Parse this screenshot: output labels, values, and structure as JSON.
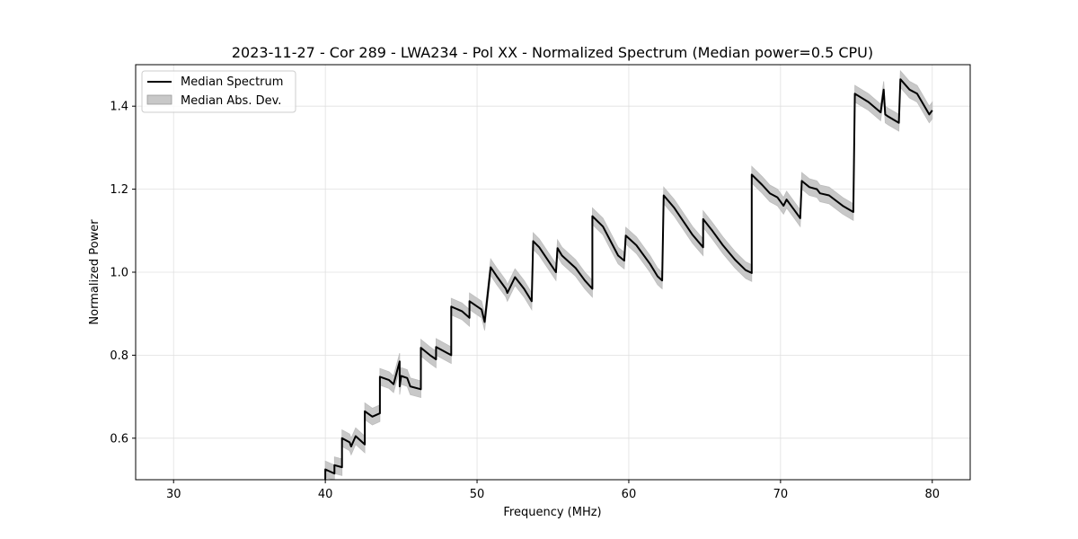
{
  "chart_data": {
    "type": "line",
    "title": "2023-11-27 - Cor 289 - LWA234 - Pol XX - Normalized Spectrum (Median power=0.5 CPU)",
    "xlabel": "Frequency (MHz)",
    "ylabel": "Normalized Power",
    "xlim": [
      27.5,
      82.5
    ],
    "ylim": [
      0.5,
      1.5
    ],
    "xticks": [
      30,
      40,
      50,
      60,
      70,
      80
    ],
    "yticks": [
      0.6,
      0.8,
      1.0,
      1.2,
      1.4
    ],
    "xtick_labels": [
      "30",
      "40",
      "50",
      "60",
      "70",
      "80"
    ],
    "ytick_labels": [
      "0.6",
      "0.8",
      "1.0",
      "1.2",
      "1.4"
    ],
    "grid": true,
    "legend_position": "top-left",
    "legend": [
      "Median Spectrum",
      "Median Abs. Dev."
    ],
    "series": [
      {
        "name": "Median Spectrum",
        "color": "#000000",
        "x": [
          40.0,
          40.0,
          40.6,
          40.6,
          41.1,
          41.1,
          41.6,
          41.7,
          42.0,
          42.6,
          42.6,
          43.1,
          43.6,
          43.6,
          44.2,
          44.5,
          44.9,
          44.9,
          45.0,
          45.4,
          45.6,
          46.3,
          46.3,
          46.9,
          47.3,
          47.3,
          48.3,
          48.3,
          49.0,
          49.5,
          49.5,
          50.3,
          50.5,
          50.9,
          51.3,
          51.6,
          51.9,
          52.0,
          52.5,
          53.1,
          53.6,
          53.7,
          54.1,
          55.2,
          55.3,
          55.6,
          56.5,
          57.1,
          57.6,
          57.6,
          58.3,
          59.3,
          59.7,
          59.8,
          60.5,
          61.4,
          61.9,
          62.2,
          62.3,
          63.0,
          64.2,
          64.9,
          64.9,
          65.5,
          66.2,
          67.0,
          67.7,
          68.1,
          68.1,
          68.8,
          69.3,
          69.8,
          70.2,
          70.4,
          70.9,
          71.3,
          71.4,
          71.9,
          72.4,
          72.6,
          73.2,
          74.1,
          74.8,
          74.9,
          75.8,
          76.6,
          76.8,
          76.9,
          77.1,
          77.8,
          77.9,
          78.5,
          79.0,
          79.8,
          80.0
        ],
        "y": [
          0.5,
          0.525,
          0.515,
          0.535,
          0.53,
          0.6,
          0.59,
          0.58,
          0.605,
          0.585,
          0.665,
          0.652,
          0.66,
          0.748,
          0.74,
          0.73,
          0.785,
          0.725,
          0.75,
          0.745,
          0.725,
          0.718,
          0.818,
          0.8,
          0.79,
          0.82,
          0.8,
          0.917,
          0.906,
          0.89,
          0.93,
          0.91,
          0.88,
          1.012,
          0.99,
          0.975,
          0.96,
          0.95,
          0.988,
          0.96,
          0.93,
          1.075,
          1.06,
          1.0,
          1.058,
          1.04,
          1.01,
          0.98,
          0.96,
          1.135,
          1.11,
          1.04,
          1.028,
          1.088,
          1.065,
          1.02,
          0.99,
          0.98,
          1.185,
          1.155,
          1.09,
          1.06,
          1.128,
          1.1,
          1.065,
          1.03,
          1.005,
          0.998,
          1.235,
          1.21,
          1.19,
          1.18,
          1.16,
          1.175,
          1.15,
          1.13,
          1.22,
          1.205,
          1.2,
          1.19,
          1.185,
          1.16,
          1.145,
          1.43,
          1.41,
          1.385,
          1.44,
          1.38,
          1.375,
          1.36,
          1.465,
          1.44,
          1.43,
          1.38,
          1.39
        ]
      },
      {
        "name": "Median Abs. Dev.",
        "color": "#c8c8c8",
        "mad": 0.02
      }
    ]
  }
}
